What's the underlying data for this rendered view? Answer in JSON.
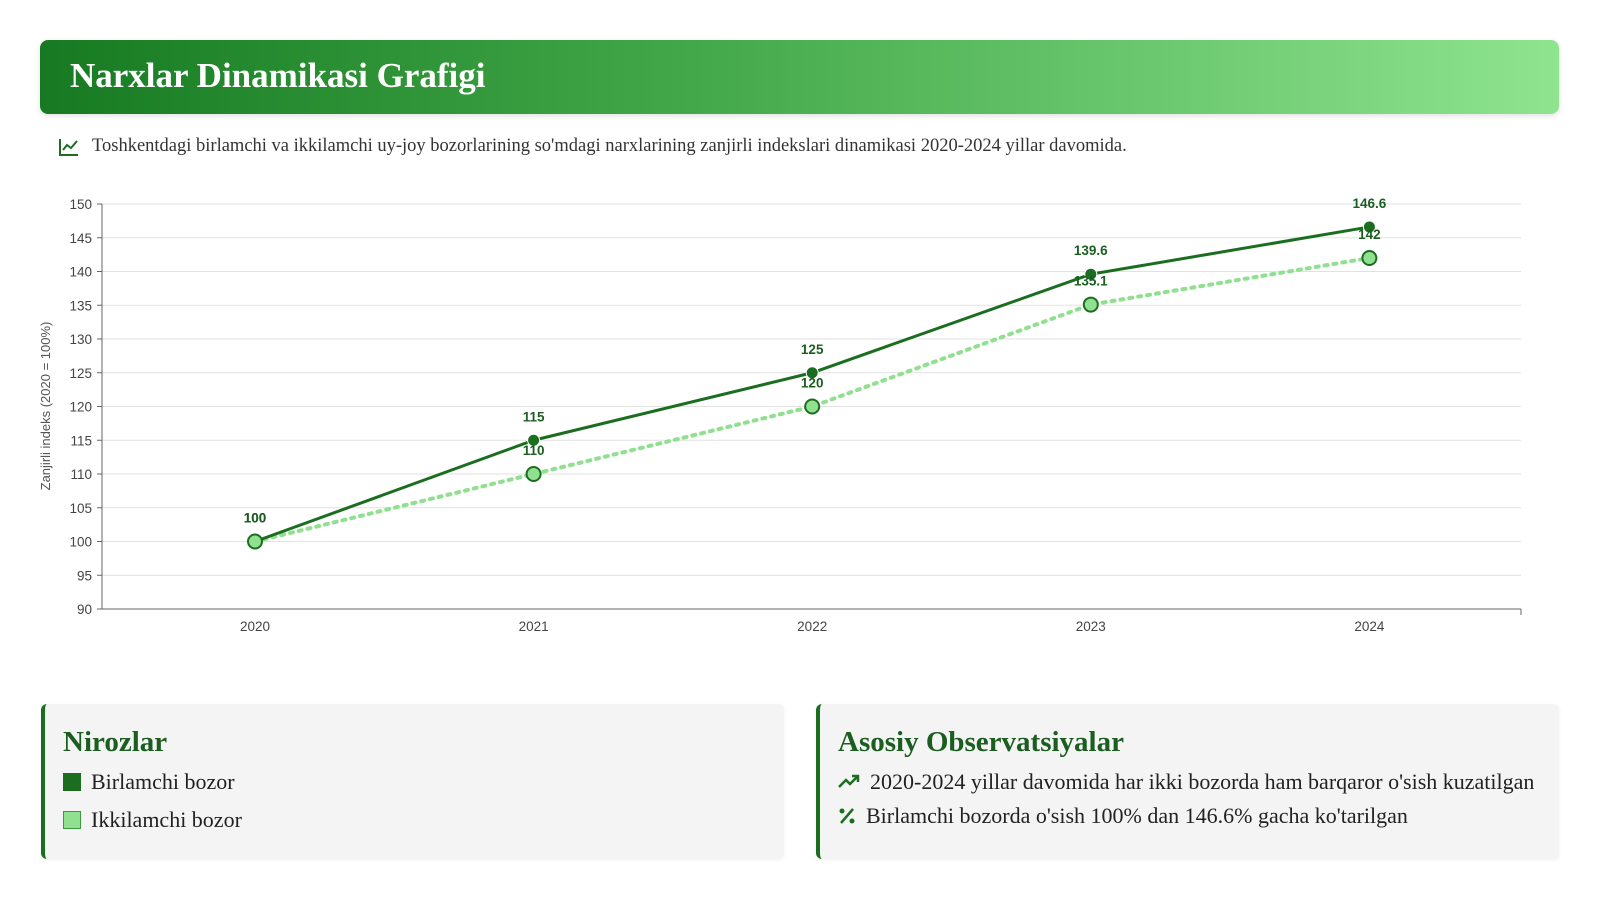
{
  "header": {
    "title": "Narxlar Dinamikasi Grafigi"
  },
  "description": "Toshkentdagi birlamchi va ikkilamchi uy-joy bozorlarining so'mdagi narxlarining zanjirli indekslari dinamikasi 2020-2024 yillar davomida.",
  "chart_data": {
    "type": "line",
    "categories": [
      "2020",
      "2021",
      "2022",
      "2023",
      "2024"
    ],
    "series": [
      {
        "name": "Birlamchi bozor",
        "color": "#1b6e20",
        "values": [
          100,
          115,
          125,
          139.6,
          146.6
        ]
      },
      {
        "name": "Ikkilamchi bozor",
        "color": "#90e090",
        "values": [
          100,
          110,
          120,
          135.1,
          142
        ]
      }
    ],
    "ylabel": "Zanjirli indeks (2020 = 100%)",
    "ylim": [
      90,
      150
    ],
    "yticks": [
      90,
      95,
      100,
      105,
      110,
      115,
      120,
      125,
      130,
      135,
      140,
      145,
      150
    ],
    "grid": true,
    "legend_title": "Nirozlar"
  },
  "observations": {
    "title": "Asosiy Observatsiyalar",
    "items": [
      "2020-2024 yillar davomida har ikki bozorda ham barqaror o'sish kuzatilgan",
      "Birlamchi bozorda o'sish 100% dan 146.6% gacha ko'tarilgan"
    ]
  }
}
